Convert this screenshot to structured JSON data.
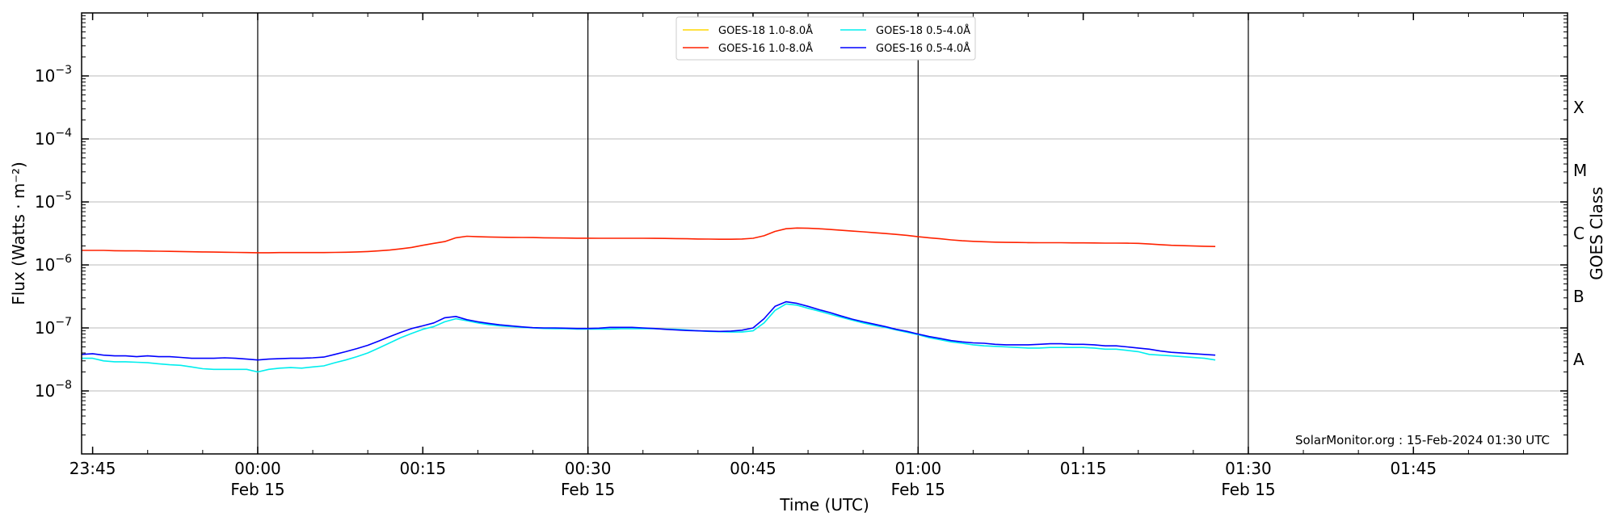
{
  "chart_data": {
    "type": "line",
    "xlabel": "Time (UTC)",
    "ylabel": "Flux (Watts · m⁻²)",
    "y2label": "GOES Class",
    "yscale": "log",
    "ylim": [
      1e-09,
      0.01
    ],
    "xlim": [
      "Feb 14 23:44",
      "Feb 15 01:59"
    ],
    "y_ticks": [
      {
        "value": 1e-08,
        "base": "10",
        "exp": "−8"
      },
      {
        "value": 1e-07,
        "base": "10",
        "exp": "−7"
      },
      {
        "value": 1e-06,
        "base": "10",
        "exp": "−6"
      },
      {
        "value": 1e-05,
        "base": "10",
        "exp": "−5"
      },
      {
        "value": 0.0001,
        "base": "10",
        "exp": "−4"
      },
      {
        "value": 0.001,
        "base": "10",
        "exp": "−3"
      }
    ],
    "x_ticks": [
      {
        "minute": 1,
        "time": "23:45",
        "date": ""
      },
      {
        "minute": 16,
        "time": "00:00",
        "date": "Feb 15"
      },
      {
        "minute": 31,
        "time": "00:15",
        "date": ""
      },
      {
        "minute": 46,
        "time": "00:30",
        "date": "Feb 15"
      },
      {
        "minute": 61,
        "time": "00:45",
        "date": ""
      },
      {
        "minute": 76,
        "time": "01:00",
        "date": "Feb 15"
      },
      {
        "minute": 91,
        "time": "01:15",
        "date": ""
      },
      {
        "minute": 106,
        "time": "01:30",
        "date": "Feb 15"
      },
      {
        "minute": 121,
        "time": "01:45",
        "date": ""
      }
    ],
    "vertical_lines_at_minute": [
      16,
      46,
      76,
      106
    ],
    "goes_classes": [
      {
        "label": "A",
        "center": 3.16e-08
      },
      {
        "label": "B",
        "center": 3.16e-07
      },
      {
        "label": "C",
        "center": 3.16e-06
      },
      {
        "label": "M",
        "center": 3.16e-05
      },
      {
        "label": "X",
        "center": 0.000316
      }
    ],
    "grid": {
      "horizontal": true,
      "vertical": false
    },
    "legend": {
      "placement": "top-center",
      "columns": 2
    },
    "x_minutes": [
      0,
      1,
      2,
      3,
      4,
      5,
      6,
      7,
      8,
      9,
      10,
      11,
      12,
      13,
      14,
      15,
      16,
      17,
      18,
      19,
      20,
      21,
      22,
      23,
      24,
      25,
      26,
      27,
      28,
      29,
      30,
      31,
      32,
      33,
      34,
      35,
      36,
      37,
      38,
      39,
      40,
      41,
      42,
      43,
      44,
      45,
      46,
      47,
      48,
      49,
      50,
      51,
      52,
      53,
      54,
      55,
      56,
      57,
      58,
      59,
      60,
      61,
      62,
      63,
      64,
      65,
      66,
      67,
      68,
      69,
      70,
      71,
      72,
      73,
      74,
      75,
      76,
      77,
      78,
      79,
      80,
      81,
      82,
      83,
      84,
      85,
      86,
      87,
      88,
      89,
      90,
      91,
      92,
      93,
      94,
      95,
      96,
      97,
      98,
      99,
      102,
      103
    ],
    "series": [
      {
        "name": "GOES-18 1.0-8.0Å",
        "color": "#ffd700",
        "values": []
      },
      {
        "name": "GOES-16 1.0-8.0Å",
        "color": "#ff2200",
        "values": [
          1.7e-06,
          1.7e-06,
          1.7e-06,
          1.68e-06,
          1.67e-06,
          1.67e-06,
          1.66e-06,
          1.65e-06,
          1.64e-06,
          1.63e-06,
          1.62e-06,
          1.61e-06,
          1.6e-06,
          1.59e-06,
          1.58e-06,
          1.57e-06,
          1.56e-06,
          1.56e-06,
          1.57e-06,
          1.57e-06,
          1.57e-06,
          1.57e-06,
          1.57e-06,
          1.58e-06,
          1.59e-06,
          1.61e-06,
          1.63e-06,
          1.67e-06,
          1.72e-06,
          1.8e-06,
          1.9e-06,
          2.05e-06,
          2.2e-06,
          2.35e-06,
          2.7e-06,
          2.85e-06,
          2.8e-06,
          2.78e-06,
          2.75e-06,
          2.74e-06,
          2.73e-06,
          2.72e-06,
          2.7e-06,
          2.68e-06,
          2.67e-06,
          2.66e-06,
          2.66e-06,
          2.65e-06,
          2.65e-06,
          2.65e-06,
          2.65e-06,
          2.65e-06,
          2.64e-06,
          2.63e-06,
          2.62e-06,
          2.6e-06,
          2.58e-06,
          2.57e-06,
          2.56e-06,
          2.56e-06,
          2.58e-06,
          2.65e-06,
          2.9e-06,
          3.4e-06,
          3.75e-06,
          3.85e-06,
          3.82e-06,
          3.75e-06,
          3.65e-06,
          3.55e-06,
          3.45e-06,
          3.35e-06,
          3.25e-06,
          3.15e-06,
          3.05e-06,
          2.95e-06,
          2.8e-06,
          2.7e-06,
          2.6e-06,
          2.5e-06,
          2.42e-06,
          2.37e-06,
          2.33e-06,
          2.3e-06,
          2.28e-06,
          2.27e-06,
          2.26e-06,
          2.25e-06,
          2.25e-06,
          2.25e-06,
          2.24e-06,
          2.24e-06,
          2.23e-06,
          2.22e-06,
          2.22e-06,
          2.21e-06,
          2.2e-06,
          2.15e-06,
          2.1e-06,
          2.05e-06,
          1.98e-06,
          1.96e-06
        ]
      },
      {
        "name": "GOES-18 0.5-4.0Å",
        "color": "#00eeee",
        "values": [
          3.3e-08,
          3.3e-08,
          3e-08,
          2.9e-08,
          2.9e-08,
          2.85e-08,
          2.8e-08,
          2.7e-08,
          2.6e-08,
          2.55e-08,
          2.4e-08,
          2.25e-08,
          2.2e-08,
          2.2e-08,
          2.2e-08,
          2.2e-08,
          2e-08,
          2.2e-08,
          2.3e-08,
          2.35e-08,
          2.3e-08,
          2.4e-08,
          2.5e-08,
          2.8e-08,
          3.1e-08,
          3.5e-08,
          4e-08,
          4.8e-08,
          5.8e-08,
          7e-08,
          8.2e-08,
          9.5e-08,
          1.05e-07,
          1.25e-07,
          1.4e-07,
          1.3e-07,
          1.2e-07,
          1.13e-07,
          1.08e-07,
          1.05e-07,
          1.02e-07,
          1e-07,
          9.8e-08,
          9.7e-08,
          9.7e-08,
          9.6e-08,
          9.6e-08,
          9.6e-08,
          9.6e-08,
          9.7e-08,
          9.7e-08,
          9.7e-08,
          9.7e-08,
          9.6e-08,
          9.5e-08,
          9.3e-08,
          9e-08,
          8.8e-08,
          8.7e-08,
          8.6e-08,
          8.6e-08,
          9e-08,
          1.2e-07,
          1.9e-07,
          2.4e-07,
          2.3e-07,
          2.05e-07,
          1.85e-07,
          1.65e-07,
          1.48e-07,
          1.33e-07,
          1.2e-07,
          1.1e-07,
          1.02e-07,
          9.3e-08,
          8.5e-08,
          7.8e-08,
          7e-08,
          6.5e-08,
          6e-08,
          5.7e-08,
          5.4e-08,
          5.2e-08,
          5.1e-08,
          5e-08,
          4.9e-08,
          4.8e-08,
          4.8e-08,
          4.9e-08,
          4.9e-08,
          4.9e-08,
          4.9e-08,
          4.8e-08,
          4.6e-08,
          4.6e-08,
          4.4e-08,
          4.2e-08,
          3.8e-08,
          3.7e-08,
          3.6e-08,
          3.3e-08,
          3.1e-08
        ]
      },
      {
        "name": "GOES-16 0.5-4.0Å",
        "color": "#0000ff",
        "values": [
          3.8e-08,
          3.9e-08,
          3.7e-08,
          3.6e-08,
          3.6e-08,
          3.5e-08,
          3.6e-08,
          3.5e-08,
          3.5e-08,
          3.4e-08,
          3.3e-08,
          3.3e-08,
          3.3e-08,
          3.35e-08,
          3.3e-08,
          3.2e-08,
          3.1e-08,
          3.2e-08,
          3.25e-08,
          3.3e-08,
          3.3e-08,
          3.35e-08,
          3.45e-08,
          3.8e-08,
          4.2e-08,
          4.7e-08,
          5.3e-08,
          6.2e-08,
          7.3e-08,
          8.5e-08,
          9.8e-08,
          1.08e-07,
          1.2e-07,
          1.45e-07,
          1.52e-07,
          1.35e-07,
          1.25e-07,
          1.18e-07,
          1.12e-07,
          1.08e-07,
          1.04e-07,
          1.01e-07,
          1e-07,
          1e-07,
          9.9e-08,
          9.8e-08,
          9.8e-08,
          9.9e-08,
          1.02e-07,
          1.02e-07,
          1.02e-07,
          1e-07,
          9.8e-08,
          9.5e-08,
          9.3e-08,
          9.1e-08,
          9e-08,
          8.9e-08,
          8.8e-08,
          8.9e-08,
          9.2e-08,
          1e-07,
          1.4e-07,
          2.2e-07,
          2.6e-07,
          2.45e-07,
          2.2e-07,
          1.95e-07,
          1.75e-07,
          1.55e-07,
          1.38e-07,
          1.25e-07,
          1.15e-07,
          1.05e-07,
          9.5e-08,
          8.8e-08,
          8e-08,
          7.3e-08,
          6.8e-08,
          6.3e-08,
          6e-08,
          5.8e-08,
          5.7e-08,
          5.5e-08,
          5.4e-08,
          5.4e-08,
          5.4e-08,
          5.5e-08,
          5.6e-08,
          5.6e-08,
          5.5e-08,
          5.5e-08,
          5.4e-08,
          5.2e-08,
          5.2e-08,
          5e-08,
          4.8e-08,
          4.6e-08,
          4.3e-08,
          4.1e-08,
          3.8e-08,
          3.7e-08
        ]
      }
    ],
    "credit": "SolarMonitor.org : 15-Feb-2024 01:30 UTC"
  }
}
